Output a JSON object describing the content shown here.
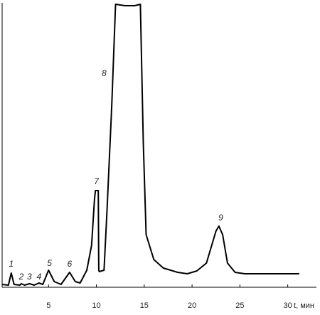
{
  "chart_data": {
    "type": "line",
    "x_label": "t, мин",
    "xlim": [
      0,
      33
    ],
    "xticks": [
      5,
      10,
      15,
      20,
      25,
      30
    ],
    "ylim": [
      0,
      100
    ],
    "color": "#000000",
    "series": [
      {
        "color": "#000000",
        "x": [
          0.15,
          0.8,
          1.1,
          1.4,
          2,
          2.15,
          2.5,
          3,
          3.5,
          4,
          4.4,
          5.0,
          5.6,
          6.3,
          7.2,
          7.8,
          8.3,
          9,
          9.5,
          9.8,
          9.9,
          10.2,
          10.25,
          10.3,
          10.8,
          11.1,
          11.6,
          12,
          13,
          14,
          14.6,
          14.9,
          15.2,
          16,
          17,
          18.5,
          19.5,
          20.5,
          21.5,
          22.5,
          22.8,
          23.2,
          23.7,
          24.5,
          25.5,
          31.2
        ],
        "values": [
          1,
          0.75,
          5,
          1,
          0.75,
          1.25,
          0.75,
          1.25,
          0.75,
          1.5,
          1,
          6,
          2,
          1,
          5.25,
          2,
          1.5,
          6,
          14.75,
          31,
          34,
          34,
          6,
          5.5,
          6,
          26,
          63.5,
          99.5,
          99,
          99,
          99.5,
          51,
          18.5,
          9.75,
          6.75,
          5.25,
          4.75,
          5.75,
          8.5,
          19.75,
          21.5,
          18.5,
          8.5,
          5.25,
          4.75,
          4.75
        ]
      }
    ],
    "annotations": [
      {
        "text": "1",
        "x": 1.1,
        "y": 8
      },
      {
        "text": "2",
        "x": 2.15,
        "y": 3.5
      },
      {
        "text": "3",
        "x": 3,
        "y": 3.5
      },
      {
        "text": "4",
        "x": 4,
        "y": 3.5
      },
      {
        "text": "5",
        "x": 5.1,
        "y": 8.25
      },
      {
        "text": "6",
        "x": 7.2,
        "y": 8
      },
      {
        "text": "7",
        "x": 10,
        "y": 37
      },
      {
        "text": "8",
        "x": 10.8,
        "y": 75
      },
      {
        "text": "9",
        "x": 23,
        "y": 24.25
      }
    ]
  }
}
